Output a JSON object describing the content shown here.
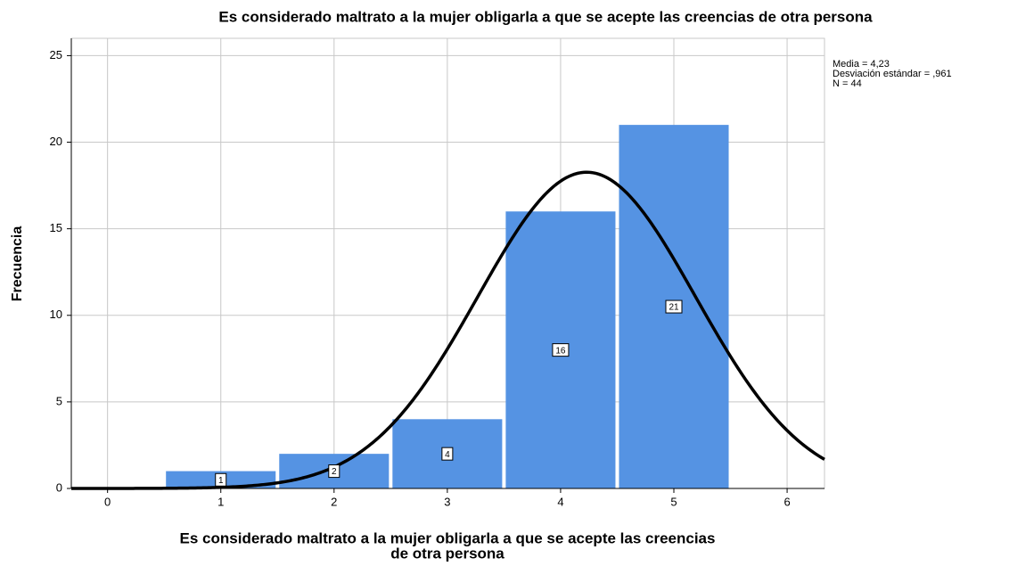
{
  "chart_data": {
    "type": "histogram",
    "title": "Es considerado maltrato a la mujer obligarla a que se acepte las creencias de otra persona",
    "x_label": [
      "Es considerado maltrato a la mujer obligarla a que se acepte las creencias",
      "de otra persona"
    ],
    "y_label": "Frecuencia",
    "bins": [
      0.5,
      1.5,
      2.5,
      3.5,
      4.5,
      5.5
    ],
    "values": [
      1,
      2,
      4,
      16,
      21
    ],
    "color": "#5593e3",
    "curve_color": "#000000",
    "stats": [
      {
        "value": 4.23,
        "label": "Media = 4,23"
      },
      {
        "value": 0.961,
        "label": "Desviación estándar = ,961"
      },
      {
        "value": 44,
        "label": "N = 44"
      }
    ],
    "xlim": [
      -0.32,
      6.33
    ],
    "ylim": [
      0,
      26
    ],
    "xticks": [
      0,
      1,
      2,
      3,
      4,
      5,
      6
    ],
    "yticks": [
      0,
      5,
      10,
      15,
      20,
      25
    ],
    "grid": true
  }
}
